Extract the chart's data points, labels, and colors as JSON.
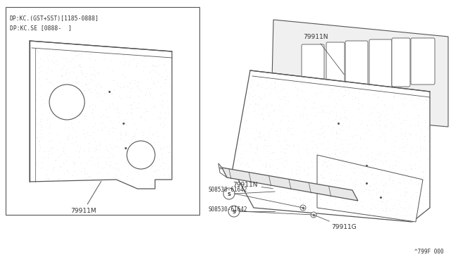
{
  "bg_color": "#ffffff",
  "line_color": "#555555",
  "text_color": "#333333",
  "dot_color": "#cccccc",
  "box_label1": "DP:KC.(GST+SST)[1185-0888]",
  "box_label2": "DP:KC.SE [0888-  ]",
  "footer": "^799F 000",
  "label_79911M": "79911M",
  "label_79911N_top": "79911N",
  "label_79911N_mid": "79911N",
  "label_79911G": "79911G",
  "screw_label1": "S08530-61642",
  "screw_label2": "S08530-61642"
}
